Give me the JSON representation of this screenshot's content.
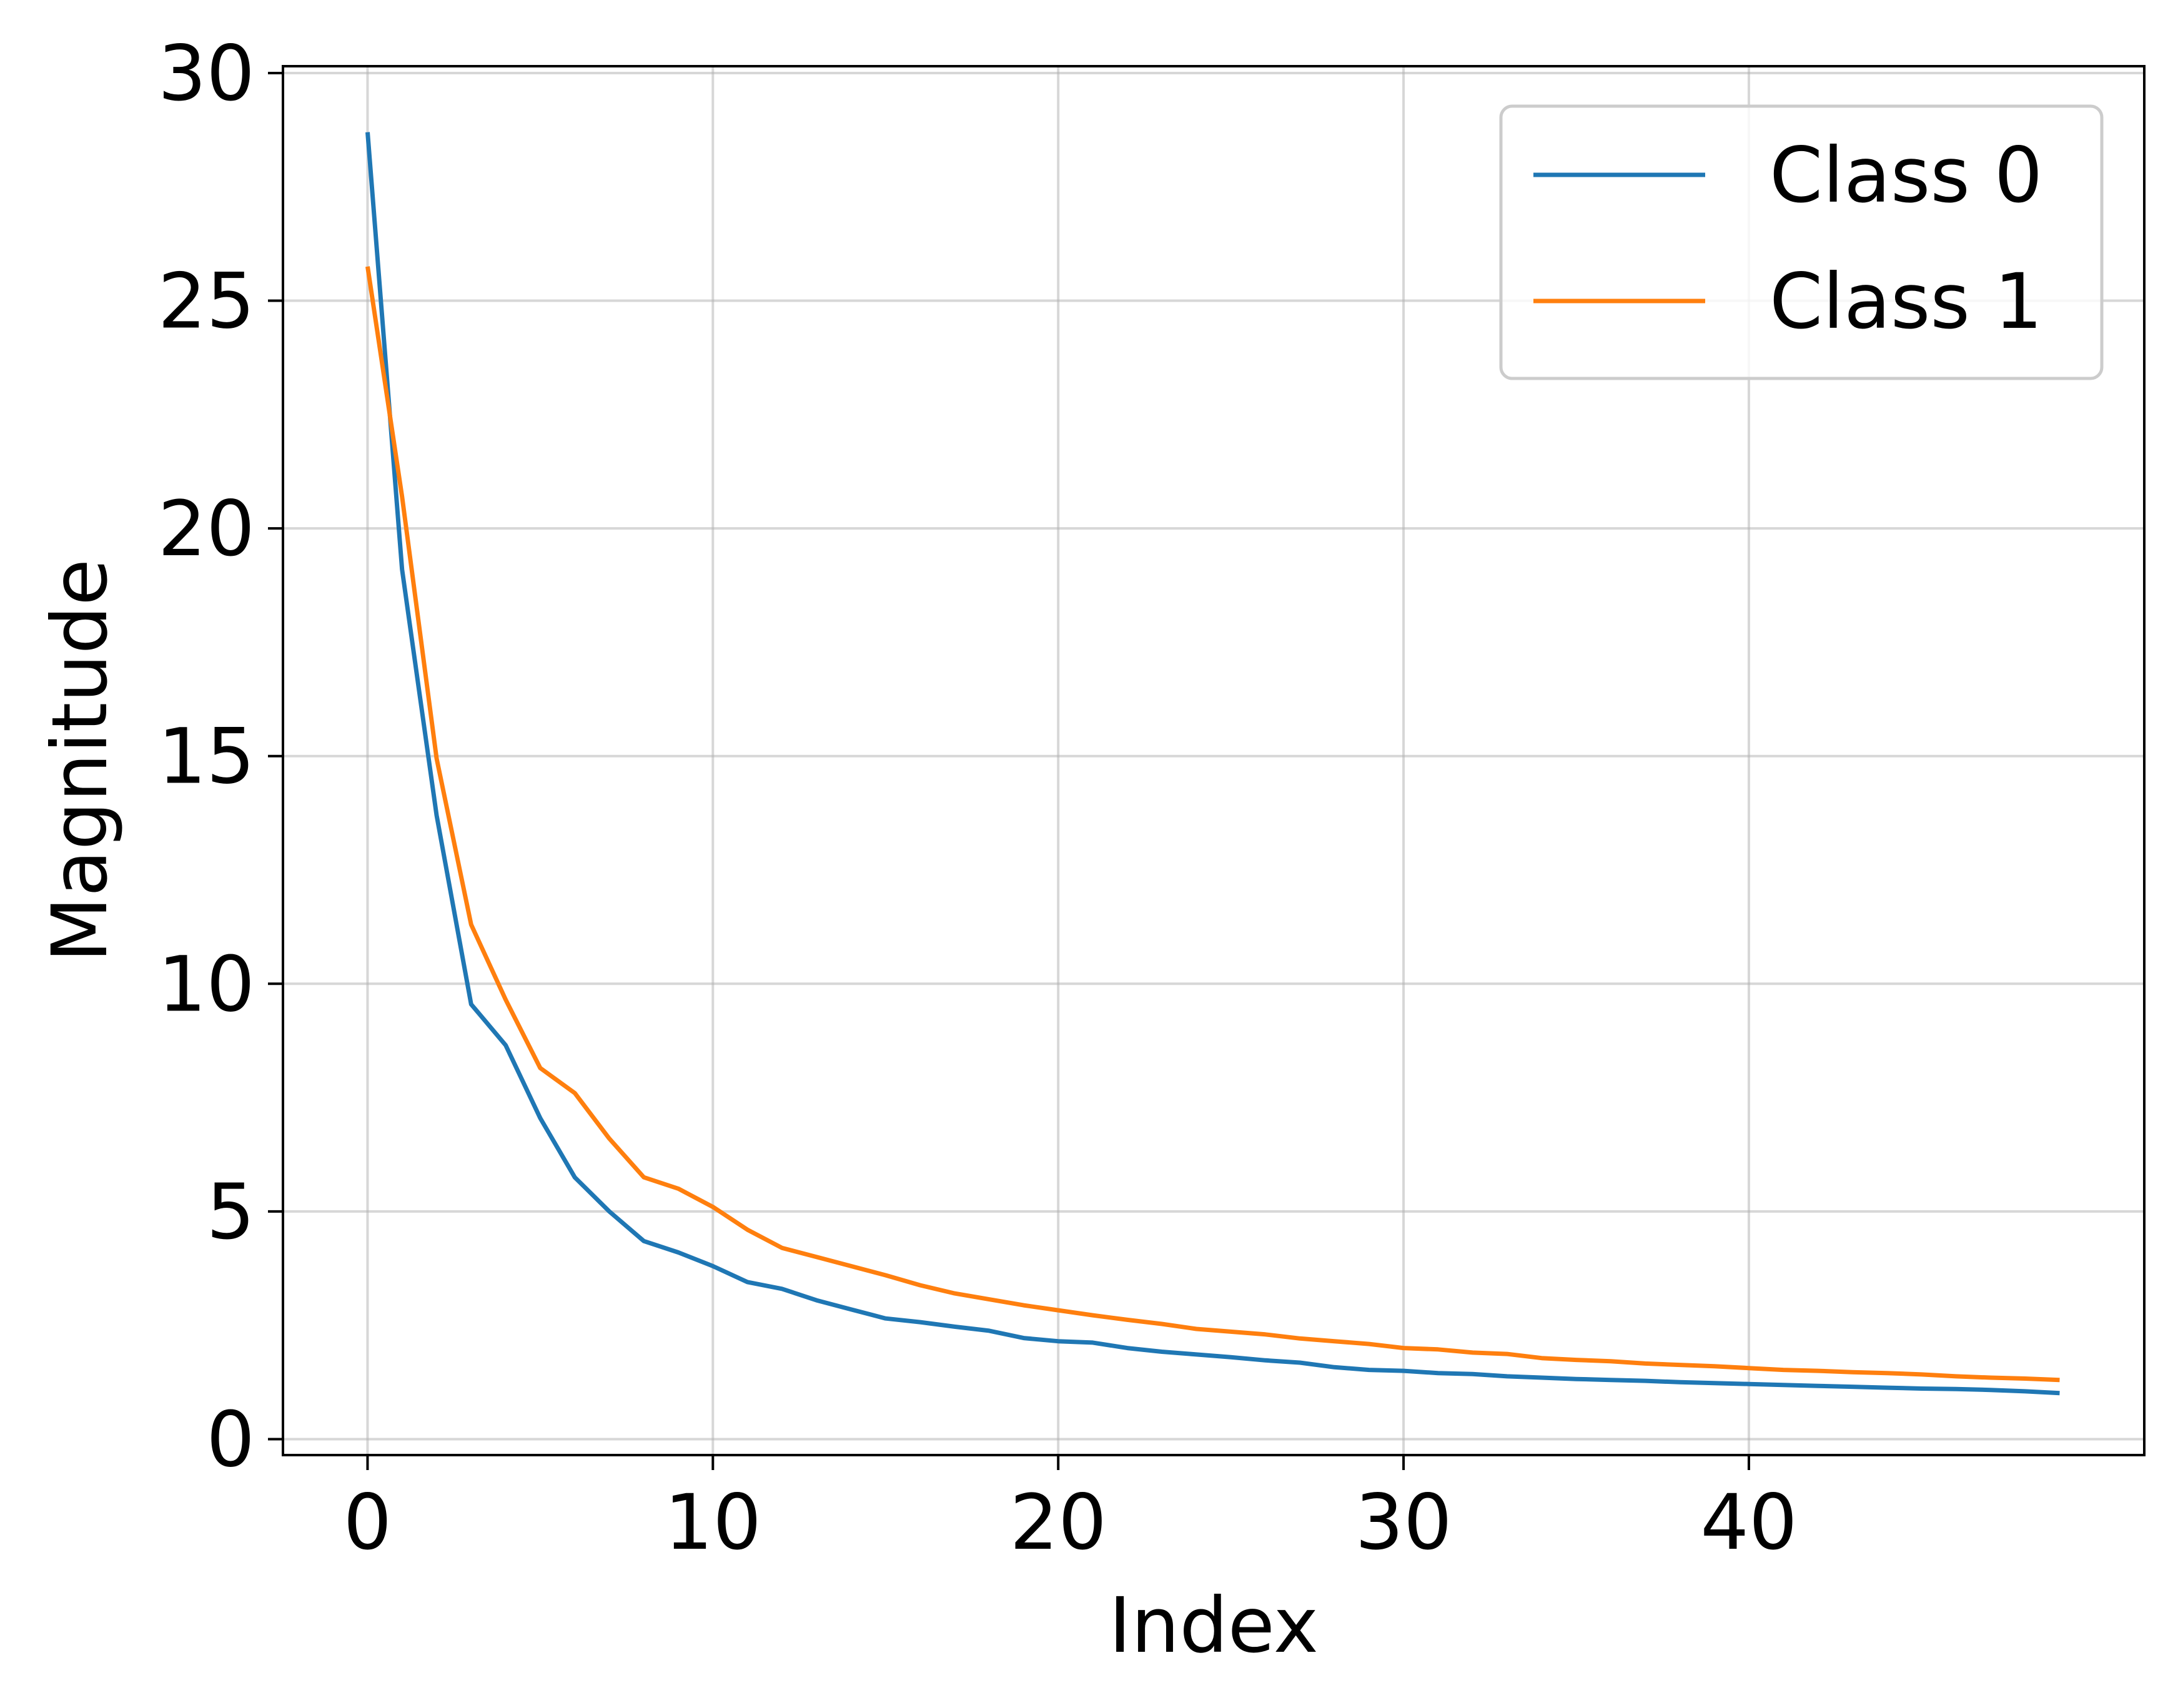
{
  "chart_data": {
    "type": "line",
    "xlabel": "Index",
    "ylabel": "Magnitude",
    "xlim": [
      -2.45,
      51.45
    ],
    "ylim": [
      -0.35,
      30.15
    ],
    "xticks": [
      0,
      10,
      20,
      30,
      40
    ],
    "xtick_labels": [
      "0",
      "10",
      "20",
      "30",
      "40"
    ],
    "yticks": [
      0,
      5,
      10,
      15,
      20,
      25,
      30
    ],
    "ytick_labels": [
      "0",
      "5",
      "10",
      "15",
      "20",
      "25",
      "30"
    ],
    "grid": true,
    "legend_position": "top-right",
    "x": [
      0,
      1,
      2,
      3,
      4,
      5,
      6,
      7,
      8,
      9,
      10,
      11,
      12,
      13,
      14,
      15,
      16,
      17,
      18,
      19,
      20,
      21,
      22,
      23,
      24,
      25,
      26,
      27,
      28,
      29,
      30,
      31,
      32,
      33,
      34,
      35,
      36,
      37,
      38,
      39,
      40,
      41,
      42,
      43,
      44,
      45,
      46,
      47,
      48,
      49
    ],
    "series": [
      {
        "name": "Class 0",
        "color": "#1f77b4",
        "values": [
          28.7,
          19.1,
          13.7,
          9.55,
          8.65,
          7.05,
          5.75,
          5.0,
          4.35,
          4.1,
          3.8,
          3.45,
          3.3,
          3.05,
          2.85,
          2.65,
          2.57,
          2.47,
          2.38,
          2.22,
          2.15,
          2.12,
          2.0,
          1.92,
          1.86,
          1.8,
          1.73,
          1.68,
          1.58,
          1.52,
          1.5,
          1.45,
          1.43,
          1.38,
          1.35,
          1.32,
          1.3,
          1.28,
          1.25,
          1.23,
          1.21,
          1.19,
          1.17,
          1.15,
          1.13,
          1.11,
          1.1,
          1.08,
          1.05,
          1.01
        ]
      },
      {
        "name": "Class 1",
        "color": "#ff7f0e",
        "values": [
          25.75,
          20.7,
          14.95,
          11.3,
          9.65,
          8.15,
          7.6,
          6.6,
          5.75,
          5.5,
          5.1,
          4.6,
          4.2,
          4.0,
          3.8,
          3.6,
          3.38,
          3.2,
          3.07,
          2.94,
          2.83,
          2.72,
          2.62,
          2.53,
          2.42,
          2.36,
          2.3,
          2.21,
          2.15,
          2.09,
          2.0,
          1.97,
          1.9,
          1.87,
          1.78,
          1.74,
          1.71,
          1.66,
          1.63,
          1.6,
          1.56,
          1.52,
          1.5,
          1.47,
          1.45,
          1.42,
          1.38,
          1.35,
          1.33,
          1.3
        ]
      }
    ]
  }
}
